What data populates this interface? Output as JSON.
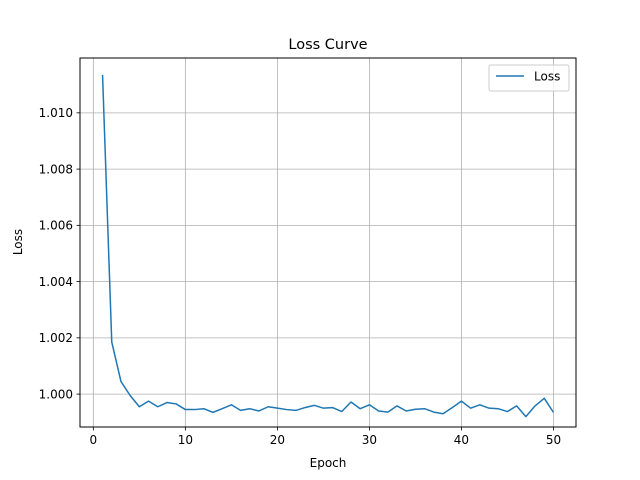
{
  "chart_data": {
    "type": "line",
    "title": "Loss Curve",
    "xlabel": "Epoch",
    "ylabel": "Loss",
    "xlim": [
      -1.45,
      52.45
    ],
    "ylim": [
      0.99883,
      1.01195
    ],
    "x_ticks": [
      0,
      10,
      20,
      30,
      40,
      50
    ],
    "y_ticks": [
      1.0,
      1.002,
      1.004,
      1.006,
      1.008,
      1.01
    ],
    "y_tick_labels": [
      "1.000",
      "1.002",
      "1.004",
      "1.006",
      "1.008",
      "1.010"
    ],
    "grid": true,
    "legend_position": "top-right",
    "series": [
      {
        "name": "Loss",
        "color": "#1f77b4",
        "x": [
          1,
          2,
          3,
          4,
          5,
          6,
          7,
          8,
          9,
          10,
          11,
          12,
          13,
          14,
          15,
          16,
          17,
          18,
          19,
          20,
          21,
          22,
          23,
          24,
          25,
          26,
          27,
          28,
          29,
          30,
          31,
          32,
          33,
          34,
          35,
          36,
          37,
          38,
          39,
          40,
          41,
          42,
          43,
          44,
          45,
          46,
          47,
          48,
          49,
          50
        ],
        "values": [
          1.01135,
          1.00185,
          1.00045,
          0.99995,
          0.99955,
          0.99975,
          0.99955,
          0.9997,
          0.99965,
          0.99945,
          0.99945,
          0.99948,
          0.99935,
          0.99948,
          0.99962,
          0.99942,
          0.99948,
          0.9994,
          0.99955,
          0.9995,
          0.99945,
          0.99942,
          0.99952,
          0.9996,
          0.9995,
          0.99952,
          0.99938,
          0.99972,
          0.99948,
          0.99962,
          0.9994,
          0.99936,
          0.99958,
          0.9994,
          0.99946,
          0.99948,
          0.99936,
          0.9993,
          0.99952,
          0.99975,
          0.9995,
          0.99962,
          0.9995,
          0.99948,
          0.99938,
          0.99958,
          0.9992,
          0.99958,
          0.99985,
          0.99935
        ]
      }
    ]
  }
}
